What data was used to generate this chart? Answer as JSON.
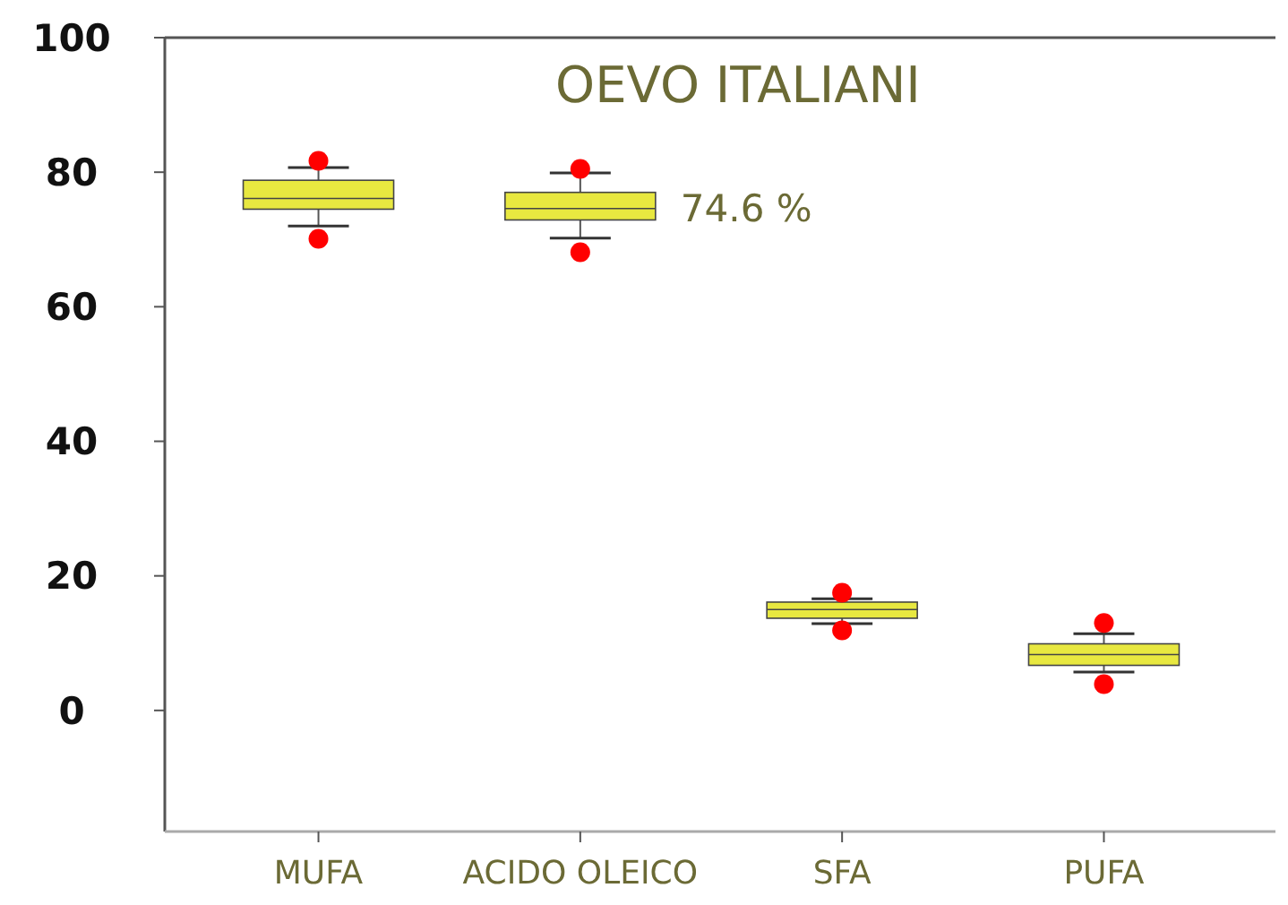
{
  "chart_data": {
    "type": "box",
    "title": "OEVO ITALIANI",
    "categories": [
      "MUFA",
      "ACIDO OLEICO",
      "SFA",
      "PUFA"
    ],
    "ylim": [
      -18,
      100
    ],
    "yticks": [
      0,
      20,
      40,
      60,
      80,
      100
    ],
    "annotations": [
      {
        "text": "74.6 %",
        "x": "ACIDO OLEICO",
        "y": 74.6
      }
    ],
    "series": [
      {
        "color": "#e8e840",
        "boxes": [
          {
            "low": 72.0,
            "q1": 74.5,
            "median": 76.1,
            "q3": 78.8,
            "high": 80.7
          },
          {
            "low": 70.2,
            "q1": 72.9,
            "median": 74.6,
            "q3": 77.0,
            "high": 79.9
          },
          {
            "low": 12.9,
            "q1": 13.7,
            "median": 15.0,
            "q3": 16.1,
            "high": 16.6
          },
          {
            "low": 5.7,
            "q1": 6.7,
            "median": 8.3,
            "q3": 9.9,
            "high": 11.4
          }
        ]
      },
      {
        "type": "scatter",
        "color": "#ff0000",
        "marker": "circle",
        "x": [
          "MUFA",
          "MUFA",
          "ACIDO OLEICO",
          "ACIDO OLEICO",
          "SFA",
          "SFA",
          "PUFA",
          "PUFA"
        ],
        "values": [
          81.7,
          70.1,
          80.5,
          68.1,
          17.5,
          11.9,
          13.0,
          3.9
        ]
      }
    ]
  }
}
